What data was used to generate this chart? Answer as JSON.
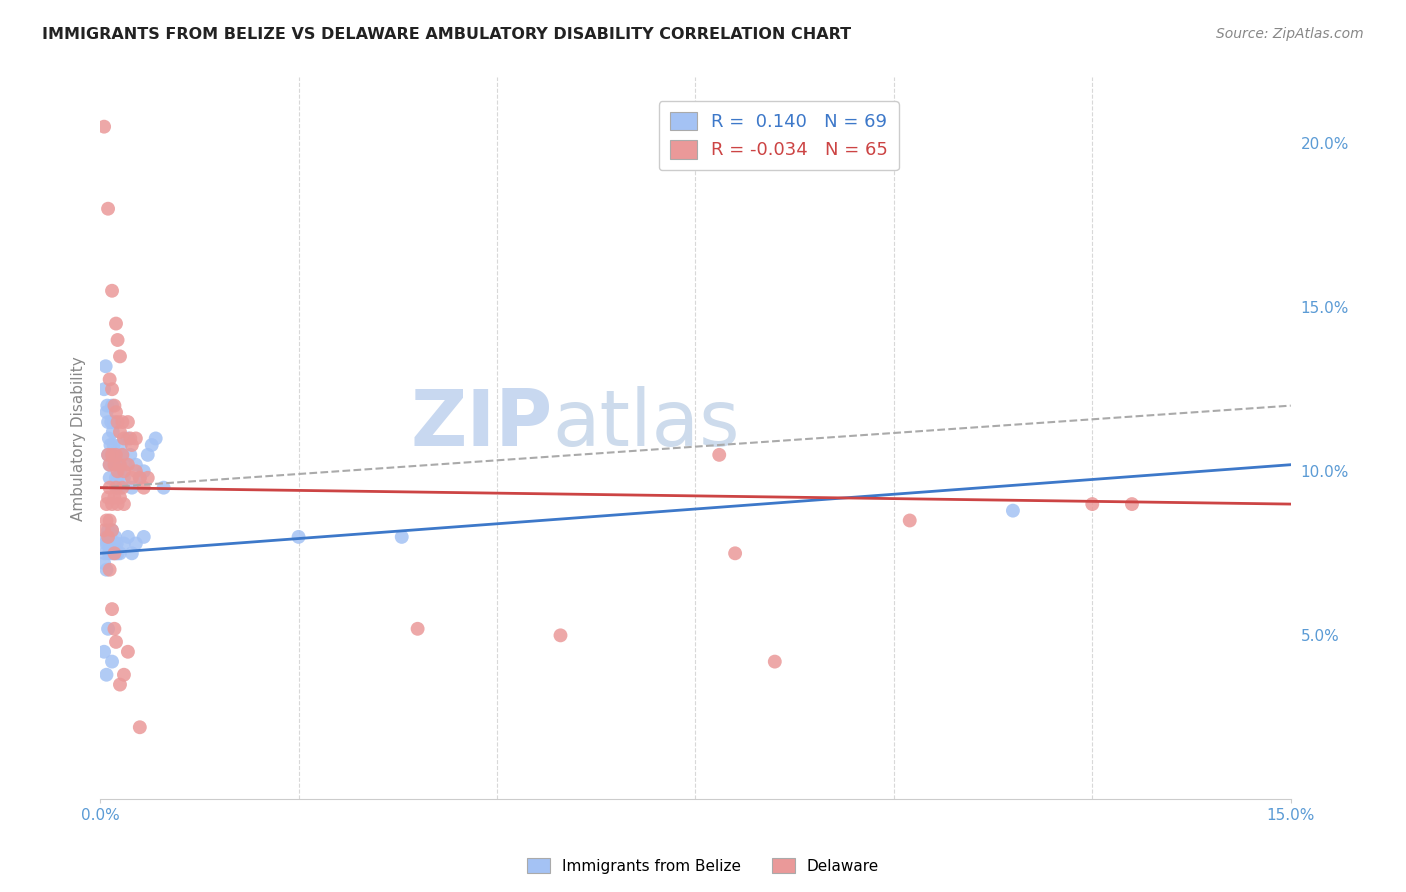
{
  "title": "IMMIGRANTS FROM BELIZE VS DELAWARE AMBULATORY DISABILITY CORRELATION CHART",
  "source": "Source: ZipAtlas.com",
  "ylabel": "Ambulatory Disability",
  "right_ytick_vals": [
    5.0,
    10.0,
    15.0,
    20.0
  ],
  "xlim": [
    0.0,
    15.0
  ],
  "ylim": [
    0.0,
    22.0
  ],
  "legend_blue_R": "0.140",
  "legend_blue_N": "69",
  "legend_pink_R": "-0.034",
  "legend_pink_N": "65",
  "legend_label_blue": "Immigrants from Belize",
  "legend_label_pink": "Delaware",
  "blue_color": "#a4c2f4",
  "pink_color": "#ea9999",
  "blue_line_color": "#3d78c9",
  "pink_line_color": "#cc4444",
  "watermark_color": "#c8d8f0",
  "blue_scatter": [
    [
      0.05,
      12.5
    ],
    [
      0.07,
      13.2
    ],
    [
      0.08,
      11.8
    ],
    [
      0.09,
      12.0
    ],
    [
      0.1,
      11.5
    ],
    [
      0.1,
      10.5
    ],
    [
      0.11,
      11.0
    ],
    [
      0.12,
      10.2
    ],
    [
      0.12,
      9.8
    ],
    [
      0.13,
      10.8
    ],
    [
      0.14,
      11.5
    ],
    [
      0.15,
      12.0
    ],
    [
      0.15,
      10.5
    ],
    [
      0.16,
      11.2
    ],
    [
      0.17,
      10.8
    ],
    [
      0.18,
      11.5
    ],
    [
      0.19,
      10.2
    ],
    [
      0.2,
      9.8
    ],
    [
      0.21,
      9.5
    ],
    [
      0.22,
      10.5
    ],
    [
      0.23,
      9.8
    ],
    [
      0.24,
      10.2
    ],
    [
      0.25,
      9.5
    ],
    [
      0.26,
      10.8
    ],
    [
      0.28,
      10.5
    ],
    [
      0.3,
      9.8
    ],
    [
      0.32,
      10.2
    ],
    [
      0.35,
      11.0
    ],
    [
      0.38,
      10.5
    ],
    [
      0.4,
      9.5
    ],
    [
      0.45,
      10.2
    ],
    [
      0.5,
      9.8
    ],
    [
      0.55,
      10.0
    ],
    [
      0.6,
      10.5
    ],
    [
      0.65,
      10.8
    ],
    [
      0.7,
      11.0
    ],
    [
      0.08,
      8.0
    ],
    [
      0.09,
      7.8
    ],
    [
      0.1,
      8.2
    ],
    [
      0.11,
      7.5
    ],
    [
      0.12,
      7.8
    ],
    [
      0.13,
      8.0
    ],
    [
      0.14,
      7.5
    ],
    [
      0.15,
      8.2
    ],
    [
      0.16,
      7.8
    ],
    [
      0.17,
      7.5
    ],
    [
      0.18,
      7.8
    ],
    [
      0.19,
      8.0
    ],
    [
      0.2,
      7.5
    ],
    [
      0.21,
      7.8
    ],
    [
      0.22,
      7.5
    ],
    [
      0.05,
      7.2
    ],
    [
      0.06,
      7.5
    ],
    [
      0.07,
      7.8
    ],
    [
      0.08,
      7.0
    ],
    [
      0.25,
      7.5
    ],
    [
      0.3,
      7.8
    ],
    [
      0.35,
      8.0
    ],
    [
      0.4,
      7.5
    ],
    [
      0.45,
      7.8
    ],
    [
      0.05,
      4.5
    ],
    [
      0.08,
      3.8
    ],
    [
      0.55,
      8.0
    ],
    [
      2.5,
      8.0
    ],
    [
      3.8,
      8.0
    ],
    [
      11.5,
      8.8
    ],
    [
      0.1,
      5.2
    ],
    [
      0.15,
      4.2
    ],
    [
      0.8,
      9.5
    ]
  ],
  "pink_scatter": [
    [
      0.05,
      20.5
    ],
    [
      0.1,
      18.0
    ],
    [
      0.15,
      15.5
    ],
    [
      0.2,
      14.5
    ],
    [
      0.22,
      14.0
    ],
    [
      0.25,
      13.5
    ],
    [
      0.12,
      12.8
    ],
    [
      0.15,
      12.5
    ],
    [
      0.18,
      12.0
    ],
    [
      0.2,
      11.8
    ],
    [
      0.22,
      11.5
    ],
    [
      0.25,
      11.2
    ],
    [
      0.28,
      11.5
    ],
    [
      0.3,
      11.0
    ],
    [
      0.35,
      11.5
    ],
    [
      0.38,
      11.0
    ],
    [
      0.4,
      10.8
    ],
    [
      0.45,
      11.0
    ],
    [
      0.1,
      10.5
    ],
    [
      0.12,
      10.2
    ],
    [
      0.15,
      10.5
    ],
    [
      0.18,
      10.2
    ],
    [
      0.2,
      10.5
    ],
    [
      0.22,
      10.0
    ],
    [
      0.25,
      10.2
    ],
    [
      0.28,
      10.5
    ],
    [
      0.3,
      10.0
    ],
    [
      0.35,
      10.2
    ],
    [
      0.4,
      9.8
    ],
    [
      0.45,
      10.0
    ],
    [
      0.5,
      9.8
    ],
    [
      0.55,
      9.5
    ],
    [
      0.6,
      9.8
    ],
    [
      0.08,
      9.0
    ],
    [
      0.1,
      9.2
    ],
    [
      0.12,
      9.5
    ],
    [
      0.15,
      9.0
    ],
    [
      0.18,
      9.2
    ],
    [
      0.2,
      9.5
    ],
    [
      0.22,
      9.0
    ],
    [
      0.25,
      9.2
    ],
    [
      0.28,
      9.5
    ],
    [
      0.3,
      9.0
    ],
    [
      0.05,
      8.2
    ],
    [
      0.08,
      8.5
    ],
    [
      0.1,
      8.0
    ],
    [
      0.12,
      8.5
    ],
    [
      0.15,
      8.2
    ],
    [
      0.18,
      7.5
    ],
    [
      0.12,
      7.0
    ],
    [
      0.15,
      5.8
    ],
    [
      0.18,
      5.2
    ],
    [
      0.2,
      4.8
    ],
    [
      0.25,
      3.5
    ],
    [
      0.3,
      3.8
    ],
    [
      0.35,
      4.5
    ],
    [
      5.8,
      5.0
    ],
    [
      4.0,
      5.2
    ],
    [
      7.8,
      10.5
    ],
    [
      10.2,
      8.5
    ],
    [
      12.5,
      9.0
    ],
    [
      13.0,
      9.0
    ],
    [
      8.0,
      7.5
    ],
    [
      0.5,
      2.2
    ],
    [
      8.5,
      4.2
    ]
  ]
}
